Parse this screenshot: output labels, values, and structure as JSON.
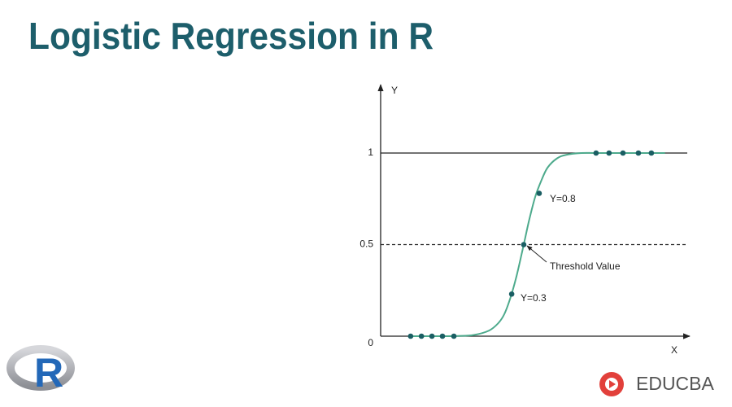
{
  "header": {
    "title": "Logistic Regression in R"
  },
  "logos": {
    "r": "R",
    "brand": "EDUCBA"
  },
  "chart_data": {
    "type": "line",
    "x_label": "X",
    "y_label": "Y",
    "xlim": [
      0,
      10
    ],
    "ylim": [
      0,
      1.37
    ],
    "yticks": [
      0,
      0.5,
      1
    ],
    "curve": {
      "color": "#4daa8c",
      "x": [
        1,
        2,
        2.5,
        3,
        3.5,
        3.8,
        4,
        4.2,
        4.4,
        4.63,
        4.8,
        5,
        5.2,
        5.4,
        5.7,
        6,
        6.5,
        7,
        8,
        9.2
      ],
      "values": [
        0,
        0,
        0.001,
        0.006,
        0.03,
        0.07,
        0.12,
        0.21,
        0.33,
        0.5,
        0.63,
        0.76,
        0.85,
        0.92,
        0.97,
        0.99,
        1,
        1,
        1,
        1
      ]
    },
    "points": {
      "color": "#1a5e63",
      "x": [
        0.97,
        1.32,
        1.66,
        2.0,
        2.37,
        4.24,
        4.63,
        5.13,
        6.97,
        7.39,
        7.84,
        8.34,
        8.76
      ],
      "values": [
        0,
        0,
        0,
        0,
        0,
        0.23,
        0.5,
        0.78,
        1,
        1,
        1,
        1,
        1
      ]
    },
    "annotations": [
      "Y=0.8",
      "Threshold Value",
      "Y=0.3"
    ]
  }
}
